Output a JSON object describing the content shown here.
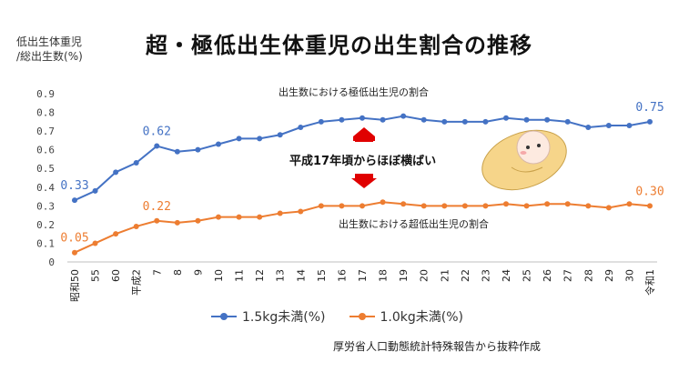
{
  "header": {
    "title": "超・極低出生体重児の出生割合の推移",
    "y_unit_line1": "低出生体重児",
    "y_unit_line2": "/総出生数(%)"
  },
  "annotations": {
    "upper": "出生数における極低出生児の割合",
    "middle": "平成17年頃からほぼ横ばい",
    "lower": "出生数における超低出生児の割合"
  },
  "source": "厚労省人口動態統計特殊報告から抜粋作成",
  "colors": {
    "series1": "#4472C4",
    "series2": "#ED7D31",
    "arrow": "#E00000",
    "baby_bg": "#F6D58A"
  },
  "chart_data": {
    "type": "line",
    "categories": [
      "昭和50",
      "55",
      "60",
      "平成2",
      "7",
      "8",
      "9",
      "10",
      "11",
      "12",
      "13",
      "14",
      "15",
      "16",
      "17",
      "18",
      "19",
      "20",
      "21",
      "22",
      "23",
      "24",
      "25",
      "26",
      "27",
      "28",
      "29",
      "30",
      "令和1"
    ],
    "ylim": [
      0,
      0.9
    ],
    "yticks": [
      "0",
      "0.1",
      "0.2",
      "0.3",
      "0.4",
      "0.5",
      "0.6",
      "0.7",
      "0.8",
      "0.9"
    ],
    "grid": false,
    "legend_position": "bottom",
    "series": [
      {
        "name": "1.5kg未満(%)",
        "values": [
          0.33,
          0.38,
          0.48,
          0.53,
          0.62,
          0.59,
          0.6,
          0.63,
          0.66,
          0.66,
          0.68,
          0.72,
          0.75,
          0.76,
          0.77,
          0.76,
          0.78,
          0.76,
          0.75,
          0.75,
          0.75,
          0.77,
          0.76,
          0.76,
          0.75,
          0.72,
          0.73,
          0.73,
          0.75
        ]
      },
      {
        "name": "1.0kg未満(%)",
        "values": [
          0.05,
          0.1,
          0.15,
          0.19,
          0.22,
          0.21,
          0.22,
          0.24,
          0.24,
          0.24,
          0.26,
          0.27,
          0.3,
          0.3,
          0.3,
          0.32,
          0.31,
          0.3,
          0.3,
          0.3,
          0.3,
          0.31,
          0.3,
          0.31,
          0.31,
          0.3,
          0.29,
          0.31,
          0.3
        ]
      }
    ],
    "data_labels": [
      {
        "series": 0,
        "index": 0,
        "text": "0.33"
      },
      {
        "series": 0,
        "index": 4,
        "text": "0.62"
      },
      {
        "series": 0,
        "index": 28,
        "text": "0.75"
      },
      {
        "series": 1,
        "index": 0,
        "text": "0.05"
      },
      {
        "series": 1,
        "index": 4,
        "text": "0.22"
      },
      {
        "series": 1,
        "index": 28,
        "text": "0.30"
      }
    ]
  }
}
